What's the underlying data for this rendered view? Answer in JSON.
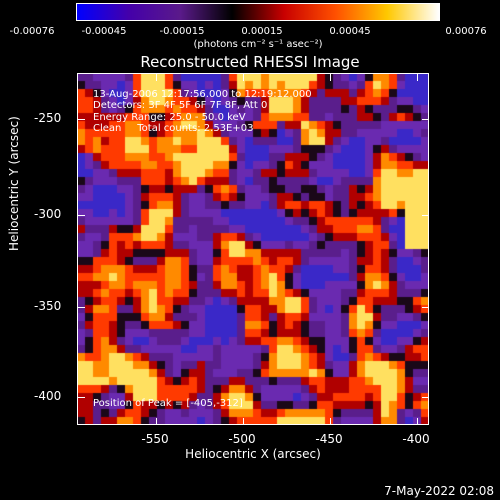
{
  "colorbar": {
    "ticks": [
      "-0.00076",
      "-0.00045",
      "-0.00015",
      "0.00015",
      "0.00045",
      "0.00076"
    ],
    "units": "(photons cm⁻² s⁻¹ asec⁻²)"
  },
  "title": "Reconstructed RHESSI Image",
  "annotations": {
    "time": "13-Aug-2006 12:17:56.000 to 12:19:12.000",
    "detectors": "Detectors: 3F 4F 5F 6F 7F 8F, Att 0",
    "energy": "Energy Range: 25.0 - 50.0 keV",
    "clean": "Clean     Total counts: 2.53E+03",
    "peak": "Position of Peak = [-405,-312]"
  },
  "axes": {
    "xlabel": "Heliocentric X (arcsec)",
    "ylabel": "Heliocentric Y (arcsec)",
    "xticks": [
      "-550",
      "-500",
      "-450",
      "-400"
    ],
    "yticks": [
      "-250",
      "-300",
      "-350",
      "-400"
    ]
  },
  "datestamp": "7-May-2022 02:08",
  "colors": {
    "background": "#000000",
    "colormap": [
      "#0000ff",
      "#4400aa",
      "#5a1a8a",
      "#000000",
      "#c80000",
      "#ff5000",
      "#ffc800",
      "#ffffff"
    ]
  }
}
